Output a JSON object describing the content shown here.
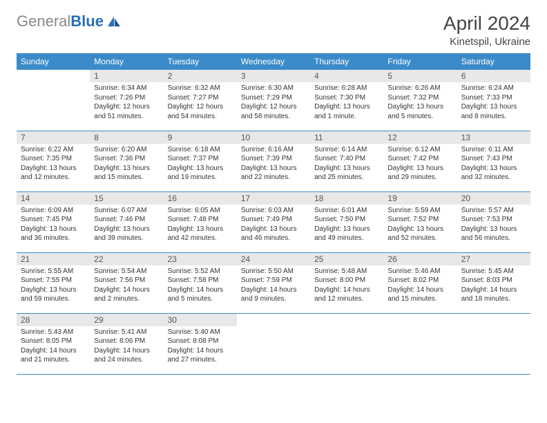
{
  "logo": {
    "textGray": "General",
    "textBlue": "Blue"
  },
  "title": "April 2024",
  "location": "Kinetspil, Ukraine",
  "colors": {
    "headerBg": "#3b8bc9",
    "headerText": "#ffffff",
    "dayNumBg": "#e8e8e8",
    "border": "#3b8bc9"
  },
  "weekdays": [
    "Sunday",
    "Monday",
    "Tuesday",
    "Wednesday",
    "Thursday",
    "Friday",
    "Saturday"
  ],
  "weeks": [
    [
      null,
      {
        "n": "1",
        "sr": "6:34 AM",
        "ss": "7:26 PM",
        "dl": "12 hours and 51 minutes."
      },
      {
        "n": "2",
        "sr": "6:32 AM",
        "ss": "7:27 PM",
        "dl": "12 hours and 54 minutes."
      },
      {
        "n": "3",
        "sr": "6:30 AM",
        "ss": "7:29 PM",
        "dl": "12 hours and 58 minutes."
      },
      {
        "n": "4",
        "sr": "6:28 AM",
        "ss": "7:30 PM",
        "dl": "13 hours and 1 minute."
      },
      {
        "n": "5",
        "sr": "6:26 AM",
        "ss": "7:32 PM",
        "dl": "13 hours and 5 minutes."
      },
      {
        "n": "6",
        "sr": "6:24 AM",
        "ss": "7:33 PM",
        "dl": "13 hours and 8 minutes."
      }
    ],
    [
      {
        "n": "7",
        "sr": "6:22 AM",
        "ss": "7:35 PM",
        "dl": "13 hours and 12 minutes."
      },
      {
        "n": "8",
        "sr": "6:20 AM",
        "ss": "7:36 PM",
        "dl": "13 hours and 15 minutes."
      },
      {
        "n": "9",
        "sr": "6:18 AM",
        "ss": "7:37 PM",
        "dl": "13 hours and 19 minutes."
      },
      {
        "n": "10",
        "sr": "6:16 AM",
        "ss": "7:39 PM",
        "dl": "13 hours and 22 minutes."
      },
      {
        "n": "11",
        "sr": "6:14 AM",
        "ss": "7:40 PM",
        "dl": "13 hours and 25 minutes."
      },
      {
        "n": "12",
        "sr": "6:12 AM",
        "ss": "7:42 PM",
        "dl": "13 hours and 29 minutes."
      },
      {
        "n": "13",
        "sr": "6:11 AM",
        "ss": "7:43 PM",
        "dl": "13 hours and 32 minutes."
      }
    ],
    [
      {
        "n": "14",
        "sr": "6:09 AM",
        "ss": "7:45 PM",
        "dl": "13 hours and 36 minutes."
      },
      {
        "n": "15",
        "sr": "6:07 AM",
        "ss": "7:46 PM",
        "dl": "13 hours and 39 minutes."
      },
      {
        "n": "16",
        "sr": "6:05 AM",
        "ss": "7:48 PM",
        "dl": "13 hours and 42 minutes."
      },
      {
        "n": "17",
        "sr": "6:03 AM",
        "ss": "7:49 PM",
        "dl": "13 hours and 46 minutes."
      },
      {
        "n": "18",
        "sr": "6:01 AM",
        "ss": "7:50 PM",
        "dl": "13 hours and 49 minutes."
      },
      {
        "n": "19",
        "sr": "5:59 AM",
        "ss": "7:52 PM",
        "dl": "13 hours and 52 minutes."
      },
      {
        "n": "20",
        "sr": "5:57 AM",
        "ss": "7:53 PM",
        "dl": "13 hours and 56 minutes."
      }
    ],
    [
      {
        "n": "21",
        "sr": "5:55 AM",
        "ss": "7:55 PM",
        "dl": "13 hours and 59 minutes."
      },
      {
        "n": "22",
        "sr": "5:54 AM",
        "ss": "7:56 PM",
        "dl": "14 hours and 2 minutes."
      },
      {
        "n": "23",
        "sr": "5:52 AM",
        "ss": "7:58 PM",
        "dl": "14 hours and 5 minutes."
      },
      {
        "n": "24",
        "sr": "5:50 AM",
        "ss": "7:59 PM",
        "dl": "14 hours and 9 minutes."
      },
      {
        "n": "25",
        "sr": "5:48 AM",
        "ss": "8:00 PM",
        "dl": "14 hours and 12 minutes."
      },
      {
        "n": "26",
        "sr": "5:46 AM",
        "ss": "8:02 PM",
        "dl": "14 hours and 15 minutes."
      },
      {
        "n": "27",
        "sr": "5:45 AM",
        "ss": "8:03 PM",
        "dl": "14 hours and 18 minutes."
      }
    ],
    [
      {
        "n": "28",
        "sr": "5:43 AM",
        "ss": "8:05 PM",
        "dl": "14 hours and 21 minutes."
      },
      {
        "n": "29",
        "sr": "5:41 AM",
        "ss": "8:06 PM",
        "dl": "14 hours and 24 minutes."
      },
      {
        "n": "30",
        "sr": "5:40 AM",
        "ss": "8:08 PM",
        "dl": "14 hours and 27 minutes."
      },
      null,
      null,
      null,
      null
    ]
  ],
  "labels": {
    "sunrise": "Sunrise: ",
    "sunset": "Sunset: ",
    "daylight": "Daylight: "
  }
}
